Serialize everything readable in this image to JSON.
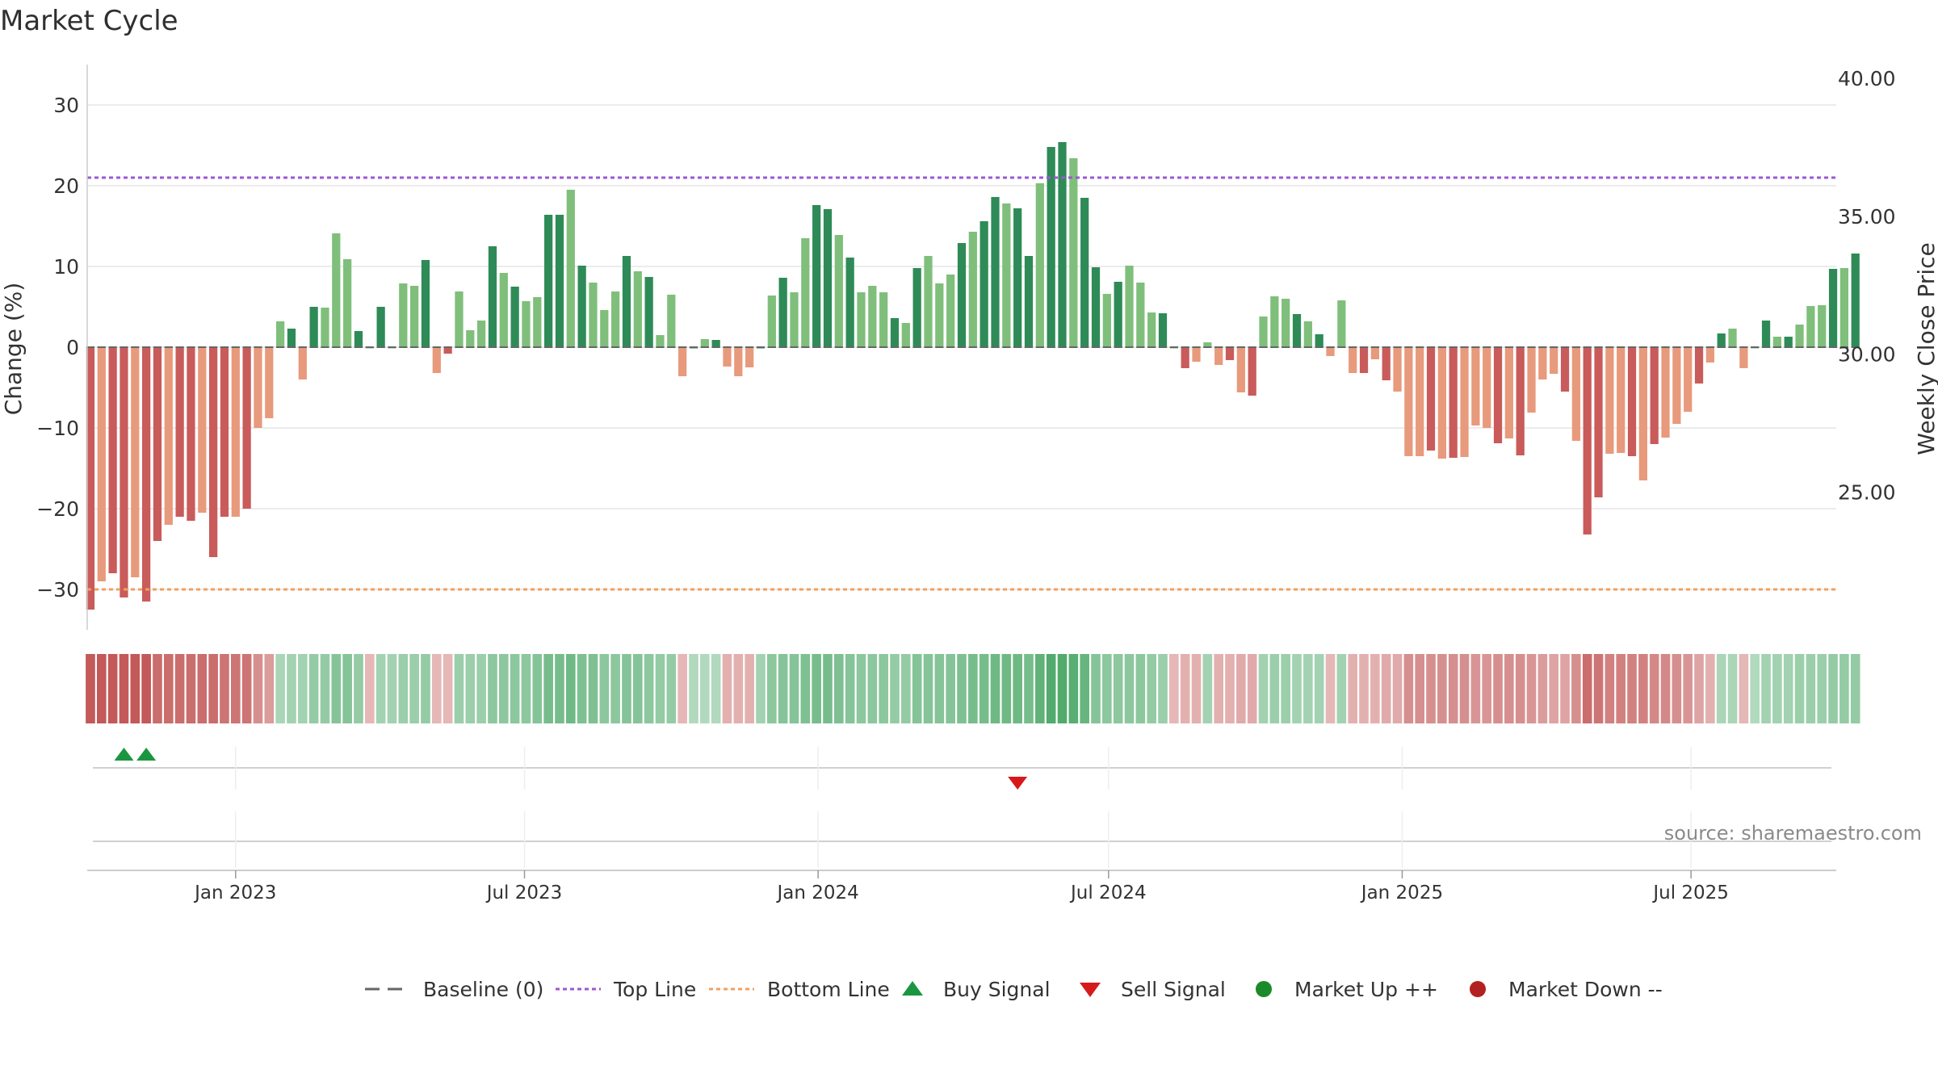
{
  "chart_data": {
    "type": "bar",
    "title": "Market Cycle",
    "ylabel_left": "Change (%)",
    "ylabel_right": "Weekly Close Price",
    "ylim_left": [
      -35,
      35
    ],
    "yticks_left": [
      30,
      20,
      10,
      0,
      -10,
      -20,
      -30
    ],
    "yticks_left_labels": [
      "30",
      "20",
      "10",
      "0",
      "−10",
      "−20",
      "−30"
    ],
    "ylim_right": [
      20.0,
      40.5
    ],
    "yticks_right": [
      40.0,
      35.0,
      30.0,
      25.0
    ],
    "yticks_right_labels": [
      "40.00",
      "35.00",
      "30.00",
      "25.00"
    ],
    "x_start": "2022-09-30",
    "x_end": "2025-09-30",
    "xticks": [
      {
        "date": "2023-01-01",
        "label": "Jan 2023"
      },
      {
        "date": "2023-07-01",
        "label": "Jul 2023"
      },
      {
        "date": "2024-01-01",
        "label": "Jan 2024"
      },
      {
        "date": "2024-07-01",
        "label": "Jul 2024"
      },
      {
        "date": "2025-01-01",
        "label": "Jan 2025"
      },
      {
        "date": "2025-07-01",
        "label": "Jul 2025"
      }
    ],
    "first_week": "2022-10-02",
    "week_step_days": 7,
    "top_line": 21,
    "bottom_line": -30,
    "values": [
      -32.5,
      -29,
      -28,
      -31,
      -28.5,
      -31.5,
      -24,
      -22,
      -21,
      -21.5,
      -20.5,
      -26,
      -21,
      -21,
      -20,
      -10,
      -8.8,
      3.2,
      2.3,
      -4,
      5,
      4.9,
      14.1,
      10.9,
      2,
      0,
      5,
      0,
      7.9,
      7.6,
      10.8,
      -3.2,
      -0.8,
      6.9,
      2.1,
      3.3,
      12.5,
      9.2,
      7.5,
      5.7,
      6.2,
      16.4,
      16.4,
      19.5,
      10.1,
      8,
      4.6,
      6.9,
      11.3,
      9.4,
      8.7,
      1.5,
      6.5,
      -3.6,
      0,
      1,
      0.9,
      -2.4,
      -3.6,
      -2.5,
      0,
      6.4,
      8.6,
      6.8,
      13.5,
      17.6,
      17.1,
      13.9,
      11.1,
      6.8,
      7.6,
      6.8,
      3.6,
      3,
      9.8,
      11.3,
      7.9,
      9,
      12.9,
      14.3,
      15.6,
      18.6,
      17.8,
      17.2,
      11.3,
      20.3,
      24.8,
      25.4,
      23.4,
      18.5,
      9.9,
      6.6,
      8.1,
      10.1,
      8,
      4.3,
      4.2,
      0,
      -2.6,
      -1.8,
      0.6,
      -2.2,
      -1.6,
      -5.6,
      -6,
      3.8,
      6.3,
      6,
      4.1,
      3.2,
      1.6,
      -1.1,
      5.8,
      -3.2,
      -3.2,
      -1.5,
      -4.1,
      -5.5,
      -13.5,
      -13.5,
      -12.8,
      -13.8,
      -13.7,
      -13.6,
      -9.7,
      -10,
      -11.9,
      -11.3,
      -13.4,
      -8.1,
      -4,
      -3.3,
      -5.5,
      -11.6,
      -23.2,
      -18.6,
      -13.2,
      -13.1,
      -13.5,
      -16.5,
      -12,
      -11.2,
      -9.5,
      -8,
      -4.5,
      -1.9,
      1.7,
      2.3,
      -2.6,
      0,
      3.3,
      1.3,
      1.3,
      2.8,
      5.1,
      5.2,
      9.7,
      9.8,
      11.6
    ],
    "heat_strip": [
      -0.9,
      -0.9,
      -0.9,
      -0.9,
      -0.9,
      -0.9,
      -0.75,
      -0.75,
      -0.75,
      -0.75,
      -0.75,
      -0.75,
      -0.7,
      -0.7,
      -0.7,
      -0.5,
      -0.4,
      0.25,
      0.3,
      0.3,
      0.4,
      0.4,
      0.5,
      0.5,
      0.4,
      -0.2,
      0.3,
      0.3,
      0.35,
      0.35,
      0.4,
      -0.2,
      -0.2,
      0.35,
      0.35,
      0.35,
      0.45,
      0.45,
      0.45,
      0.45,
      0.5,
      0.6,
      0.6,
      0.65,
      0.55,
      0.55,
      0.45,
      0.45,
      0.5,
      0.5,
      0.45,
      0.4,
      0.4,
      -0.2,
      0.2,
      0.2,
      0.2,
      -0.25,
      -0.25,
      -0.25,
      0.3,
      0.45,
      0.5,
      0.5,
      0.55,
      0.6,
      0.6,
      0.55,
      0.5,
      0.45,
      0.45,
      0.45,
      0.4,
      0.4,
      0.5,
      0.5,
      0.5,
      0.5,
      0.55,
      0.6,
      0.6,
      0.65,
      0.65,
      0.65,
      0.6,
      0.75,
      0.85,
      0.85,
      0.8,
      0.7,
      0.5,
      0.45,
      0.45,
      0.45,
      0.45,
      0.4,
      0.35,
      -0.2,
      -0.25,
      -0.25,
      0.3,
      -0.25,
      -0.25,
      -0.3,
      -0.3,
      0.3,
      0.35,
      0.35,
      0.3,
      0.3,
      0.3,
      -0.2,
      0.3,
      -0.25,
      -0.25,
      -0.25,
      -0.3,
      -0.3,
      -0.5,
      -0.5,
      -0.5,
      -0.5,
      -0.5,
      -0.5,
      -0.45,
      -0.45,
      -0.5,
      -0.5,
      -0.5,
      -0.45,
      -0.4,
      -0.35,
      -0.35,
      -0.5,
      -0.75,
      -0.7,
      -0.6,
      -0.6,
      -0.6,
      -0.6,
      -0.55,
      -0.55,
      -0.5,
      -0.45,
      -0.35,
      -0.25,
      0.25,
      0.25,
      -0.2,
      0.2,
      0.3,
      0.3,
      0.3,
      0.35,
      0.35,
      0.35,
      0.4,
      0.4,
      0.4
    ],
    "buy_signals": [
      "2022-10-23",
      "2022-11-06"
    ],
    "sell_signals": [
      "2024-05-05"
    ],
    "colors": {
      "bar_strong_up": "#2e8b57",
      "bar_weak_up": "#7fbf7b",
      "bar_strong_down": "#c95b5b",
      "bar_weak_down": "#e89a7c",
      "top_line": "#9b59d0",
      "bottom_line": "#f0a060",
      "buy": "#1a9641",
      "sell": "#d7191c",
      "market_up": "#1a8a2a",
      "market_down": "#b22222",
      "grid": "#e6e6e6"
    },
    "legend": [
      {
        "label": "Baseline (0)",
        "marker": "dashed-gray"
      },
      {
        "label": "Top Line",
        "marker": "dotted-purple"
      },
      {
        "label": "Bottom Line",
        "marker": "dotted-orange"
      },
      {
        "label": "Buy Signal",
        "marker": "triangle-up"
      },
      {
        "label": "Sell Signal",
        "marker": "triangle-down"
      },
      {
        "label": "Market Up ++",
        "marker": "dot-green"
      },
      {
        "label": "Market Down --",
        "marker": "dot-red"
      }
    ],
    "legend_placement": "bottom",
    "source_text": "source: sharemaestro.com"
  }
}
